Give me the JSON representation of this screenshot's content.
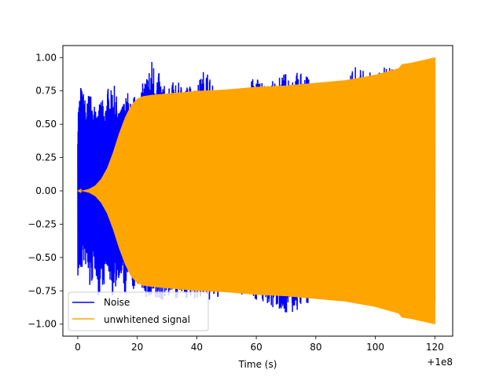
{
  "chart_data": {
    "type": "line",
    "title": "",
    "xlabel": "Time (s)",
    "ylabel": "",
    "x_offset_label": "+1e8",
    "xlim": [
      -5,
      126
    ],
    "ylim": [
      -1.09,
      1.09
    ],
    "xticks": [
      0,
      20,
      40,
      60,
      80,
      100,
      120
    ],
    "xtick_labels": [
      "0",
      "20",
      "40",
      "60",
      "80",
      "100",
      "120"
    ],
    "yticks": [
      -1.0,
      -0.75,
      -0.5,
      -0.25,
      0.0,
      0.25,
      0.5,
      0.75,
      1.0
    ],
    "ytick_labels": [
      "−1.00",
      "−0.75",
      "−0.50",
      "−0.25",
      "0.00",
      "0.25",
      "0.50",
      "0.75",
      "1.00"
    ],
    "grid": false,
    "legend_position": "lower-left",
    "series": [
      {
        "name": "Noise",
        "color": "#0000ff",
        "x_range": [
          0,
          120
        ],
        "envelope": [
          [
            0,
            0.64
          ],
          [
            1,
            0.8
          ],
          [
            2,
            0.74
          ],
          [
            3,
            0.66
          ],
          [
            4,
            0.78
          ],
          [
            5,
            0.6
          ],
          [
            6,
            0.71
          ],
          [
            7,
            0.62
          ],
          [
            8,
            0.72
          ],
          [
            9,
            0.6
          ],
          [
            10,
            0.79
          ],
          [
            11,
            0.74
          ],
          [
            12,
            0.82
          ],
          [
            13,
            0.72
          ],
          [
            14,
            0.58
          ],
          [
            15,
            0.67
          ],
          [
            16,
            0.7
          ],
          [
            17,
            0.76
          ],
          [
            18,
            0.65
          ],
          [
            19,
            0.72
          ],
          [
            20,
            0.7
          ],
          [
            25,
            1.0
          ],
          [
            30,
            0.75
          ],
          [
            32,
            0.82
          ],
          [
            40,
            0.79
          ],
          [
            43,
            0.95
          ],
          [
            46,
            0.75
          ],
          [
            50,
            0.74
          ],
          [
            55,
            0.73
          ],
          [
            60,
            0.88
          ],
          [
            64,
            0.8
          ],
          [
            72,
            0.92
          ],
          [
            80,
            0.83
          ],
          [
            88,
            0.8
          ],
          [
            94,
            0.95
          ],
          [
            100,
            0.87
          ],
          [
            104,
            0.96
          ],
          [
            109,
            0.86
          ],
          [
            110,
            0.95
          ],
          [
            120,
            0.89
          ]
        ],
        "neg_envelope": [
          [
            0,
            -0.66
          ],
          [
            1,
            -0.63
          ],
          [
            2,
            -0.55
          ],
          [
            3,
            -0.58
          ],
          [
            4,
            -0.75
          ],
          [
            5,
            -0.68
          ],
          [
            6,
            -0.59
          ],
          [
            7,
            -0.82
          ],
          [
            8,
            -0.7
          ],
          [
            9,
            -0.72
          ],
          [
            10,
            -0.58
          ],
          [
            11,
            -0.7
          ],
          [
            12,
            -0.84
          ],
          [
            13,
            -0.71
          ],
          [
            14,
            -0.64
          ],
          [
            15,
            -0.7
          ],
          [
            16,
            -0.82
          ],
          [
            17,
            -0.66
          ],
          [
            18,
            -0.73
          ],
          [
            19,
            -0.76
          ],
          [
            20,
            -0.7
          ],
          [
            25,
            -0.88
          ],
          [
            30,
            -0.8
          ],
          [
            40,
            -0.82
          ],
          [
            46,
            -0.83
          ],
          [
            50,
            -0.75
          ],
          [
            60,
            -0.82
          ],
          [
            72,
            -0.94
          ],
          [
            80,
            -0.8
          ],
          [
            100,
            -0.86
          ],
          [
            108,
            -0.85
          ],
          [
            120,
            -0.88
          ]
        ]
      },
      {
        "name": "unwhitened signal",
        "color": "#ffa500",
        "x_range": [
          0,
          120
        ],
        "envelope": [
          [
            0,
            0.0
          ],
          [
            2,
            0.003
          ],
          [
            4,
            0.015
          ],
          [
            6,
            0.04
          ],
          [
            8,
            0.09
          ],
          [
            10,
            0.17
          ],
          [
            12,
            0.29
          ],
          [
            14,
            0.43
          ],
          [
            16,
            0.55
          ],
          [
            18,
            0.64
          ],
          [
            20,
            0.69
          ],
          [
            22,
            0.71
          ],
          [
            25,
            0.72
          ],
          [
            30,
            0.73
          ],
          [
            40,
            0.75
          ],
          [
            50,
            0.76
          ],
          [
            60,
            0.78
          ],
          [
            70,
            0.79
          ],
          [
            80,
            0.81
          ],
          [
            90,
            0.83
          ],
          [
            100,
            0.87
          ],
          [
            108,
            0.92
          ],
          [
            109,
            0.95
          ],
          [
            112,
            0.96
          ],
          [
            116,
            0.98
          ],
          [
            120,
            1.0
          ]
        ]
      }
    ]
  }
}
